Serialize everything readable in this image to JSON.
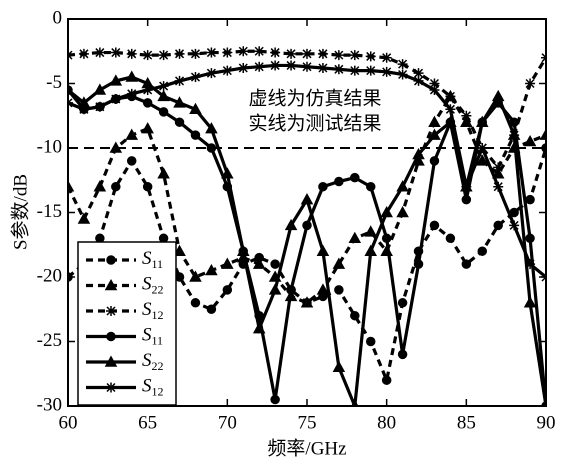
{
  "chart_data": {
    "type": "line",
    "xlabel": "频率/GHz",
    "ylabel": "S参数/dB",
    "annotations": [
      "虚线为仿真结果",
      "实线为测试结果"
    ],
    "x": [
      60,
      61,
      62,
      63,
      64,
      65,
      66,
      67,
      68,
      69,
      70,
      71,
      72,
      73,
      74,
      75,
      76,
      77,
      78,
      79,
      80,
      81,
      82,
      83,
      84,
      85,
      86,
      87,
      88,
      89,
      90
    ],
    "xlim": [
      60,
      90
    ],
    "xticks": [
      60,
      65,
      70,
      75,
      80,
      85,
      90
    ],
    "ylim": [
      -30,
      0
    ],
    "yticks": [
      0,
      -5,
      -10,
      -15,
      -20,
      -25,
      -30
    ],
    "hline": -10,
    "legend": "lower left",
    "series": [
      {
        "name": "S11",
        "color": "#000000",
        "line_style": "dashed",
        "marker": "circle",
        "values": [
          -20,
          -19,
          -17,
          -13,
          -11,
          -13,
          -17,
          -20,
          -22,
          -22.5,
          -21,
          -19,
          -18.5,
          -19,
          -21,
          -22,
          -21.5,
          -21,
          -23,
          -25,
          -28,
          -22,
          -18,
          -16,
          -17,
          -19,
          -18,
          -16,
          -15,
          -14,
          -10
        ]
      },
      {
        "name": "S22",
        "color": "#000000",
        "line_style": "dashed",
        "marker": "triangle",
        "values": [
          -13,
          -15.5,
          -13,
          -10,
          -9,
          -8.5,
          -12,
          -18,
          -20,
          -19.5,
          -19,
          -18.5,
          -19,
          -20,
          -21.5,
          -22,
          -21,
          -19,
          -17,
          -16.5,
          -18,
          -15,
          -11,
          -8,
          -6,
          -8,
          -11,
          -12,
          -10,
          -9.5,
          -9
        ]
      },
      {
        "name": "S12",
        "color": "#000000",
        "line_style": "dashed",
        "marker": "asterisk",
        "values": [
          -2.8,
          -2.7,
          -2.6,
          -2.6,
          -2.7,
          -2.8,
          -2.8,
          -2.7,
          -2.7,
          -2.6,
          -2.6,
          -2.5,
          -2.5,
          -2.6,
          -2.7,
          -2.7,
          -2.7,
          -2.8,
          -2.8,
          -2.9,
          -3,
          -3.5,
          -4.2,
          -5,
          -6,
          -7.5,
          -10,
          -11.5,
          -9,
          -5,
          -3
        ]
      },
      {
        "name": "S11",
        "color": "#000000",
        "line_style": "solid",
        "marker": "circle",
        "values": [
          -5.5,
          -7,
          -6.8,
          -6.2,
          -6,
          -6.5,
          -7.2,
          -8,
          -9,
          -10,
          -13,
          -18,
          -23,
          -29.5,
          -21,
          -16,
          -13,
          -12.6,
          -12.3,
          -13,
          -17,
          -26,
          -19,
          -11,
          -8,
          -14,
          -8,
          -6.5,
          -8,
          -17,
          -30
        ]
      },
      {
        "name": "S22",
        "color": "#000000",
        "line_style": "solid",
        "marker": "triangle",
        "values": [
          -5.5,
          -6.5,
          -5.5,
          -4.8,
          -4.5,
          -5,
          -6,
          -6.5,
          -7,
          -8.5,
          -12,
          -18,
          -24,
          -21,
          -16,
          -14,
          -18,
          -27,
          -30,
          -18,
          -15,
          -13,
          -10.5,
          -9,
          -8,
          -13,
          -8,
          -6,
          -9,
          -22,
          -30
        ]
      },
      {
        "name": "S12",
        "color": "#000000",
        "line_style": "solid",
        "marker": "asterisk",
        "values": [
          -6.5,
          -7,
          -6.8,
          -6.2,
          -5.8,
          -5.5,
          -5.2,
          -4.8,
          -4.5,
          -4.2,
          -4,
          -3.8,
          -3.7,
          -3.6,
          -3.6,
          -3.7,
          -3.8,
          -3.9,
          -4,
          -4,
          -4.1,
          -4.3,
          -4.8,
          -5.5,
          -7,
          -13,
          -10,
          -13,
          -16,
          -19,
          -20
        ]
      }
    ]
  }
}
